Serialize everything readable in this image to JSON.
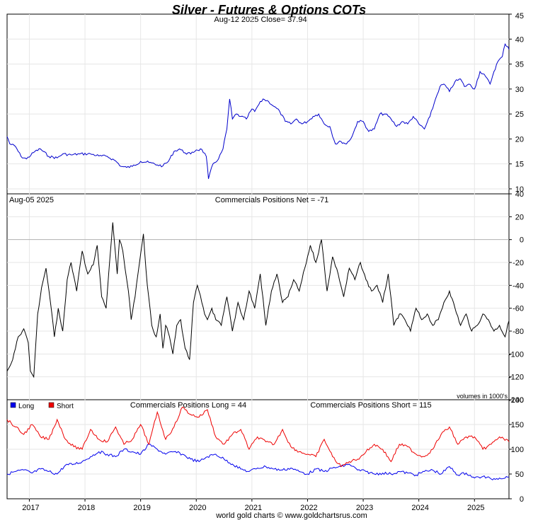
{
  "header": {
    "title": "Silver - Futures & Options COTs",
    "subtitle": "Aug-12  2025   Close= 37.94",
    "footer": "world gold charts © www.goldchartsrus.com"
  },
  "colors": {
    "title": "#0000cc",
    "price": "#0000cc",
    "net": "#000000",
    "long": "#0000ee",
    "short": "#ee0000",
    "grid": "#e6e6e6",
    "zero_line": "#b0b0b0"
  },
  "chart_data": [
    {
      "type": "line",
      "panel": "price",
      "title": "Silver - Futures & Options COTs",
      "subtitle": "Aug-12  2025   Close= 37.94",
      "x_range": [
        2016.6,
        2025.62
      ],
      "ylim": [
        9,
        45
      ],
      "y_ticks": [
        10,
        15,
        20,
        25,
        30,
        35,
        40,
        45
      ],
      "grid": true,
      "series": [
        {
          "x": [
            2016.6,
            2016.65,
            2016.75,
            2016.85,
            2016.95,
            2017.1,
            2017.2,
            2017.35,
            2017.5,
            2017.6,
            2017.75,
            2017.9,
            2018.1,
            2018.25,
            2018.4,
            2018.55,
            2018.65,
            2018.75,
            2018.85,
            2019.0,
            2019.15,
            2019.3,
            2019.4,
            2019.5,
            2019.6,
            2019.7,
            2019.8,
            2019.9,
            2020.0,
            2020.1,
            2020.18,
            2020.22,
            2020.3,
            2020.4,
            2020.48,
            2020.55,
            2020.6,
            2020.65,
            2020.72,
            2020.8,
            2020.9,
            2021.0,
            2021.05,
            2021.1,
            2021.2,
            2021.3,
            2021.4,
            2021.5,
            2021.6,
            2021.7,
            2021.8,
            2021.9,
            2022.0,
            2022.1,
            2022.2,
            2022.3,
            2022.4,
            2022.5,
            2022.6,
            2022.7,
            2022.8,
            2022.9,
            2023.0,
            2023.1,
            2023.2,
            2023.3,
            2023.4,
            2023.5,
            2023.6,
            2023.7,
            2023.8,
            2023.9,
            2024.0,
            2024.1,
            2024.2,
            2024.3,
            2024.38,
            2024.45,
            2024.55,
            2024.65,
            2024.75,
            2024.82,
            2024.9,
            2025.0,
            2025.1,
            2025.2,
            2025.28,
            2025.35,
            2025.42,
            2025.5,
            2025.55,
            2025.6,
            2025.62
          ],
          "y": [
            20.5,
            19.0,
            18.5,
            16.5,
            16.0,
            17.5,
            18.0,
            16.5,
            16.2,
            17.0,
            16.8,
            17.0,
            17.0,
            16.6,
            16.5,
            15.6,
            14.5,
            14.3,
            14.5,
            15.5,
            15.3,
            14.8,
            14.6,
            15.5,
            17.5,
            18.0,
            17.2,
            17.0,
            17.8,
            17.9,
            16.5,
            12.0,
            15.0,
            16.0,
            18.0,
            22.0,
            28.0,
            24.0,
            25.0,
            24.5,
            24.0,
            26.0,
            25.5,
            26.5,
            28.0,
            27.5,
            26.5,
            25.5,
            23.5,
            23.0,
            24.0,
            23.0,
            23.5,
            24.5,
            25.0,
            23.0,
            22.5,
            19.0,
            19.5,
            19.0,
            20.5,
            23.5,
            23.5,
            21.5,
            22.0,
            25.0,
            25.0,
            24.0,
            22.5,
            23.5,
            23.0,
            24.5,
            23.0,
            22.0,
            24.5,
            28.0,
            30.5,
            31.0,
            29.5,
            31.5,
            32.0,
            30.5,
            31.0,
            30.0,
            33.5,
            32.5,
            31.0,
            33.5,
            35.5,
            36.5,
            39.0,
            38.5,
            37.94
          ]
        }
      ]
    },
    {
      "type": "line",
      "panel": "net",
      "title": "Commercials Positions Net = -71",
      "date_label": "Aug-05  2025",
      "note": "volumes in 1000's",
      "x_range": [
        2016.6,
        2025.62
      ],
      "ylim": [
        -140,
        40
      ],
      "y_ticks": [
        -140,
        -120,
        -100,
        -80,
        -60,
        -40,
        -20,
        0,
        20,
        40
      ],
      "series": [
        {
          "name": "Commercials Positions Net",
          "x": [
            2016.6,
            2016.7,
            2016.8,
            2016.9,
            2016.98,
            2017.02,
            2017.08,
            2017.15,
            2017.22,
            2017.3,
            2017.38,
            2017.45,
            2017.52,
            2017.6,
            2017.68,
            2017.75,
            2017.85,
            2017.95,
            2018.05,
            2018.15,
            2018.22,
            2018.3,
            2018.38,
            2018.45,
            2018.5,
            2018.58,
            2018.62,
            2018.68,
            2018.72,
            2018.78,
            2018.83,
            2018.9,
            2018.98,
            2019.05,
            2019.12,
            2019.2,
            2019.28,
            2019.35,
            2019.4,
            2019.45,
            2019.52,
            2019.58,
            2019.65,
            2019.72,
            2019.8,
            2019.88,
            2019.95,
            2020.02,
            2020.1,
            2020.15,
            2020.2,
            2020.28,
            2020.35,
            2020.45,
            2020.55,
            2020.65,
            2020.75,
            2020.85,
            2020.95,
            2021.05,
            2021.15,
            2021.25,
            2021.35,
            2021.45,
            2021.55,
            2021.65,
            2021.75,
            2021.85,
            2021.95,
            2022.05,
            2022.15,
            2022.25,
            2022.35,
            2022.45,
            2022.55,
            2022.65,
            2022.75,
            2022.85,
            2022.95,
            2023.05,
            2023.15,
            2023.25,
            2023.35,
            2023.45,
            2023.55,
            2023.65,
            2023.75,
            2023.85,
            2023.95,
            2024.05,
            2024.15,
            2024.25,
            2024.35,
            2024.45,
            2024.55,
            2024.65,
            2024.75,
            2024.85,
            2024.95,
            2025.05,
            2025.15,
            2025.25,
            2025.35,
            2025.45,
            2025.55,
            2025.62
          ],
          "y": [
            -115,
            -105,
            -85,
            -78,
            -90,
            -115,
            -120,
            -65,
            -42,
            -25,
            -55,
            -85,
            -60,
            -80,
            -35,
            -20,
            -45,
            -10,
            -30,
            -22,
            -5,
            -50,
            -60,
            -15,
            15,
            -30,
            0,
            -10,
            -25,
            -45,
            -70,
            -50,
            -20,
            5,
            -40,
            -75,
            -85,
            -65,
            -95,
            -75,
            -85,
            -100,
            -75,
            -70,
            -95,
            -105,
            -55,
            -40,
            -55,
            -65,
            -70,
            -60,
            -70,
            -75,
            -50,
            -80,
            -55,
            -70,
            -45,
            -60,
            -30,
            -75,
            -45,
            -30,
            -55,
            -50,
            -35,
            -45,
            -25,
            -5,
            -20,
            0,
            -45,
            -15,
            -30,
            -50,
            -25,
            -35,
            -20,
            -35,
            -45,
            -40,
            -55,
            -30,
            -75,
            -65,
            -70,
            -80,
            -60,
            -70,
            -65,
            -75,
            -70,
            -55,
            -45,
            -60,
            -75,
            -65,
            -80,
            -75,
            -65,
            -70,
            -80,
            -75,
            -85,
            -71
          ]
        }
      ]
    },
    {
      "type": "line",
      "panel": "long-short",
      "title_long": "Commercials Positions Long = 44",
      "title_short": "Commercials Positions Short = 115",
      "x_range": [
        2016.6,
        2025.62
      ],
      "ylim": [
        0,
        200
      ],
      "y_ticks": [
        0,
        50,
        100,
        150,
        200
      ],
      "x_ticks": [
        "2017",
        "2018",
        "2019",
        "2020",
        "2021",
        "2022",
        "2023",
        "2024",
        "2025"
      ],
      "x_tick_values": [
        2017,
        2018,
        2019,
        2020,
        2021,
        2022,
        2023,
        2024,
        2025
      ],
      "series": [
        {
          "name": "Long",
          "x": [
            2016.6,
            2016.75,
            2016.9,
            2017.05,
            2017.2,
            2017.35,
            2017.5,
            2017.65,
            2017.8,
            2017.95,
            2018.1,
            2018.25,
            2018.4,
            2018.55,
            2018.7,
            2018.85,
            2019.0,
            2019.15,
            2019.3,
            2019.45,
            2019.6,
            2019.75,
            2019.9,
            2020.05,
            2020.2,
            2020.35,
            2020.5,
            2020.65,
            2020.8,
            2020.95,
            2021.1,
            2021.25,
            2021.4,
            2021.55,
            2021.7,
            2021.85,
            2022.0,
            2022.15,
            2022.3,
            2022.45,
            2022.6,
            2022.75,
            2022.9,
            2023.05,
            2023.2,
            2023.35,
            2023.5,
            2023.65,
            2023.8,
            2023.95,
            2024.1,
            2024.25,
            2024.4,
            2024.55,
            2024.7,
            2024.85,
            2025.0,
            2025.15,
            2025.3,
            2025.45,
            2025.62
          ],
          "y": [
            50,
            55,
            58,
            52,
            60,
            55,
            50,
            68,
            70,
            75,
            85,
            95,
            90,
            85,
            100,
            95,
            90,
            110,
            100,
            90,
            95,
            90,
            80,
            75,
            85,
            90,
            80,
            70,
            60,
            55,
            62,
            65,
            60,
            58,
            62,
            55,
            50,
            60,
            55,
            62,
            65,
            70,
            58,
            55,
            50,
            52,
            50,
            55,
            52,
            48,
            55,
            58,
            50,
            65,
            48,
            52,
            42,
            45,
            40,
            42,
            44
          ]
        },
        {
          "name": "Short",
          "x": [
            2016.6,
            2016.75,
            2016.9,
            2017.05,
            2017.2,
            2017.35,
            2017.5,
            2017.65,
            2017.8,
            2017.95,
            2018.1,
            2018.25,
            2018.4,
            2018.55,
            2018.7,
            2018.85,
            2019.0,
            2019.15,
            2019.3,
            2019.45,
            2019.6,
            2019.75,
            2019.9,
            2020.05,
            2020.2,
            2020.35,
            2020.5,
            2020.65,
            2020.8,
            2020.95,
            2021.1,
            2021.25,
            2021.4,
            2021.55,
            2021.7,
            2021.85,
            2022.0,
            2022.15,
            2022.3,
            2022.45,
            2022.6,
            2022.75,
            2022.9,
            2023.05,
            2023.2,
            2023.35,
            2023.5,
            2023.65,
            2023.8,
            2023.95,
            2024.1,
            2024.25,
            2024.4,
            2024.55,
            2024.7,
            2024.85,
            2025.0,
            2025.15,
            2025.3,
            2025.45,
            2025.62
          ],
          "y": [
            160,
            145,
            130,
            150,
            125,
            120,
            160,
            120,
            105,
            100,
            140,
            120,
            115,
            145,
            110,
            120,
            150,
            110,
            175,
            120,
            145,
            185,
            170,
            165,
            180,
            125,
            110,
            130,
            140,
            100,
            125,
            115,
            110,
            140,
            105,
            95,
            90,
            85,
            120,
            85,
            65,
            75,
            80,
            95,
            110,
            100,
            75,
            110,
            105,
            90,
            85,
            100,
            130,
            145,
            110,
            125,
            125,
            100,
            110,
            125,
            115
          ]
        }
      ]
    }
  ]
}
